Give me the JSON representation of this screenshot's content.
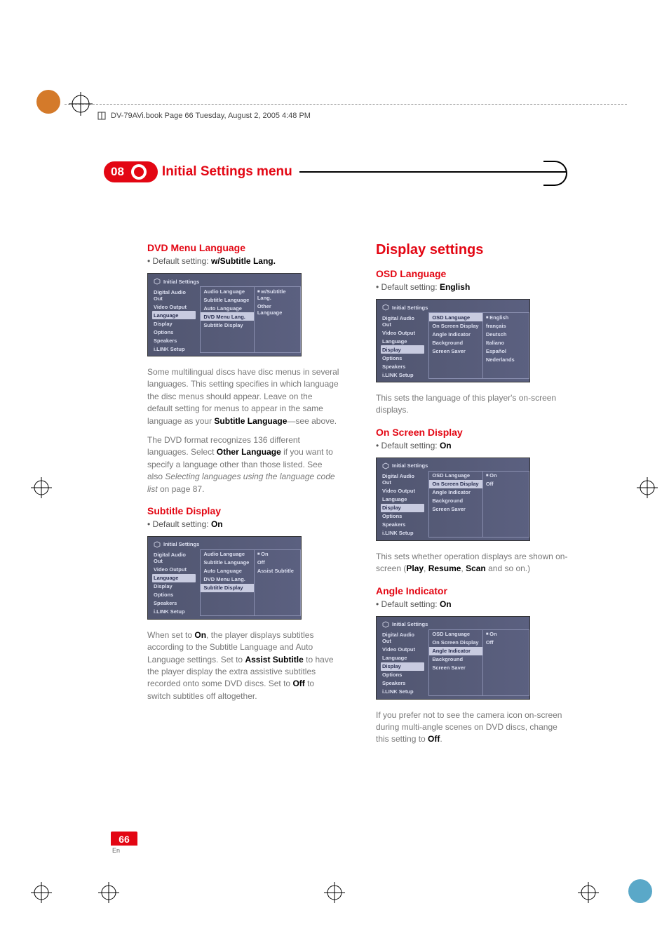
{
  "print": {
    "header": "DV-79AVi.book  Page 66  Tuesday, August 2, 2005  4:48 PM",
    "corner_color_tl": "#d47a2a",
    "corner_color_br": "#5aa8c8"
  },
  "chapter": {
    "num": "08",
    "title": "Initial Settings menu"
  },
  "page": {
    "num": "66",
    "lang": "En"
  },
  "common_osd": {
    "header": "Initial Settings",
    "left_items": [
      "Digital Audio Out",
      "Video Output",
      "Language",
      "Display",
      "Options",
      "Speakers",
      "i.LINK Setup"
    ]
  },
  "left_col": {
    "s1": {
      "title": "DVD Menu Language",
      "bullet_pre": "Default setting: ",
      "bullet_bold": "w/Subtitle Lang.",
      "osd": {
        "left_sel": 2,
        "mid": [
          "Audio Language",
          "Subtitle Language",
          "Auto Language",
          "DVD Menu Lang.",
          "Subtitle Display"
        ],
        "mid_sel": 3,
        "right": [
          "w/Subtitle Lang.",
          "Other Language"
        ],
        "right_sel": 0
      },
      "p1_a": "Some multilingual discs have disc menus in several languages. This setting specifies in which language the disc menus should appear. Leave on the default setting for menus to appear in the same language as your ",
      "p1_b": "Subtitle Language",
      "p1_c": "—see above.",
      "p2_a": "The DVD format recognizes 136 different languages. Select ",
      "p2_b": "Other Language",
      "p2_c": " if you want to specify a language other than those listed. See also ",
      "p2_i": "Selecting languages using the language code list",
      "p2_d": " on page 87."
    },
    "s2": {
      "title": "Subtitle Display",
      "bullet_pre": "Default setting: ",
      "bullet_bold": "On",
      "osd": {
        "left_sel": 2,
        "mid": [
          "Audio Language",
          "Subtitle Language",
          "Auto Language",
          "DVD Menu Lang.",
          "Subtitle Display"
        ],
        "mid_sel": 4,
        "right": [
          "On",
          "Off",
          "Assist Subtitle"
        ],
        "right_sel": 0
      },
      "p1_a": "When set to ",
      "p1_b": "On",
      "p1_c": ", the player displays subtitles according to the Subtitle Language and Auto Language settings. Set to ",
      "p1_d": "Assist Subtitle",
      "p1_e": " to have the player display the extra assistive subtitles recorded onto some DVD discs. Set to ",
      "p1_f": "Off",
      "p1_g": " to switch subtitles off altogether."
    }
  },
  "right_col": {
    "big_title": "Display settings",
    "s1": {
      "title": "OSD Language",
      "bullet_pre": "Default setting: ",
      "bullet_bold": "English",
      "osd": {
        "left_sel": 3,
        "mid": [
          "OSD Language",
          "On Screen Display",
          "Angle Indicator",
          "Background",
          "Screen Saver"
        ],
        "mid_sel": 0,
        "right": [
          "English",
          "français",
          "Deutsch",
          "Italiano",
          "Español",
          "Nederlands"
        ],
        "right_sel": 0
      },
      "p1": "This sets the language of this player's on-screen displays."
    },
    "s2": {
      "title": "On Screen Display",
      "bullet_pre": "Default setting: ",
      "bullet_bold": "On",
      "osd": {
        "left_sel": 3,
        "mid": [
          "OSD Language",
          "On Screen Display",
          "Angle Indicator",
          "Background",
          "Screen Saver"
        ],
        "mid_sel": 1,
        "right": [
          "On",
          "Off"
        ],
        "right_sel": 0
      },
      "p1_a": "This sets whether operation displays are shown on-screen (",
      "p1_b": "Play",
      "p1_c": ", ",
      "p1_d": "Resume",
      "p1_e": ", ",
      "p1_f": "Scan",
      "p1_g": " and so on.)"
    },
    "s3": {
      "title": "Angle Indicator",
      "bullet_pre": "Default setting: ",
      "bullet_bold": "On",
      "osd": {
        "left_sel": 3,
        "mid": [
          "OSD Language",
          "On Screen Display",
          "Angle Indicator",
          "Background",
          "Screen Saver"
        ],
        "mid_sel": 2,
        "right": [
          "On",
          "Off"
        ],
        "right_sel": 0
      },
      "p1_a": "If you prefer not to see the camera icon on-screen during multi-angle scenes on DVD discs, change this setting to ",
      "p1_b": "Off",
      "p1_c": "."
    }
  }
}
